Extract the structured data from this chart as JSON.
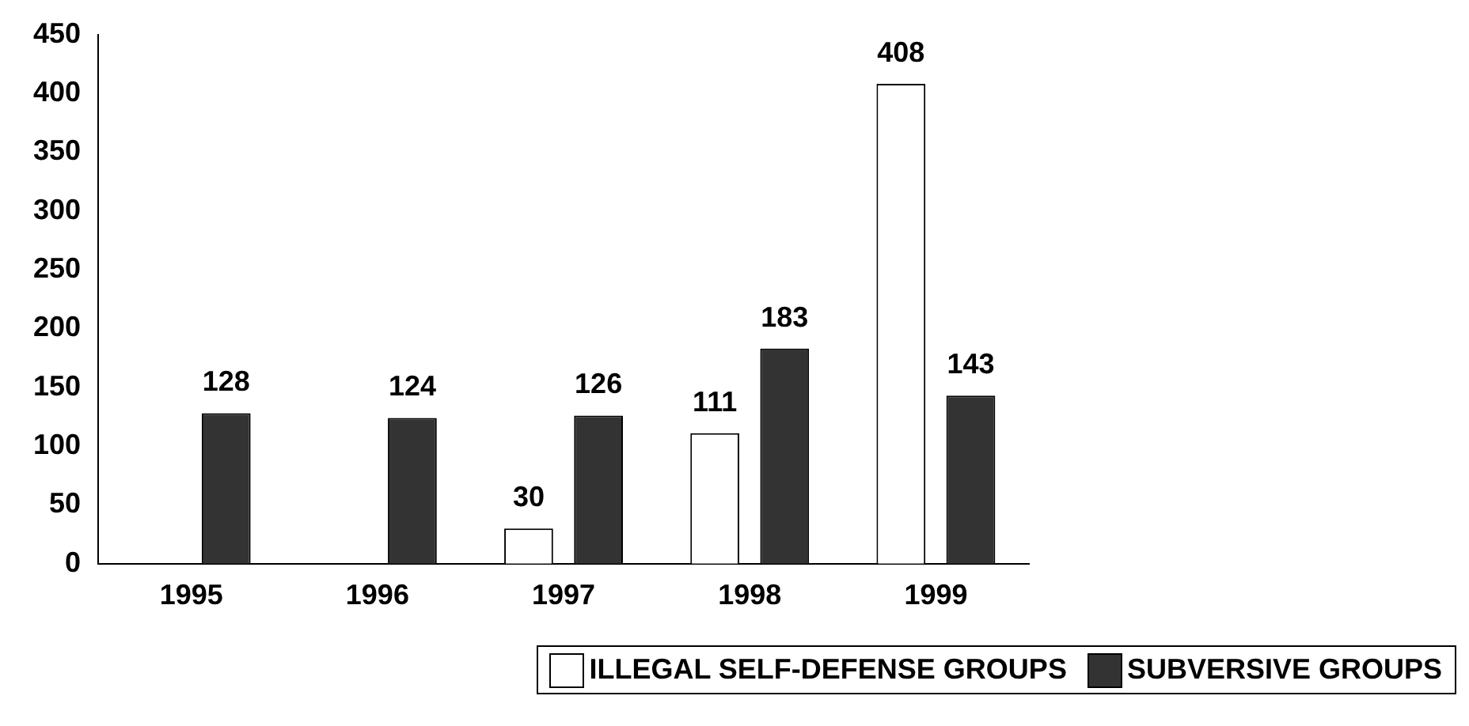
{
  "chart_data": {
    "type": "bar",
    "categories": [
      "1995",
      "1996",
      "1997",
      "1998",
      "1999"
    ],
    "series": [
      {
        "name": "ILLEGAL SELF-DEFENSE GROUPS",
        "color": "#ffffff",
        "values": [
          0,
          0,
          30,
          111,
          408
        ],
        "value_labels": [
          null,
          null,
          "30",
          "111",
          "408"
        ]
      },
      {
        "name": "SUBVERSIVE GROUPS",
        "color": "#333333",
        "values": [
          128,
          124,
          126,
          183,
          143
        ],
        "value_labels": [
          "128",
          "124",
          "126",
          "183",
          "143"
        ]
      }
    ],
    "ylim": [
      0,
      450
    ],
    "yticks": [
      0,
      50,
      100,
      150,
      200,
      250,
      300,
      350,
      400,
      450
    ],
    "grid": false,
    "legend": "bottom right"
  }
}
